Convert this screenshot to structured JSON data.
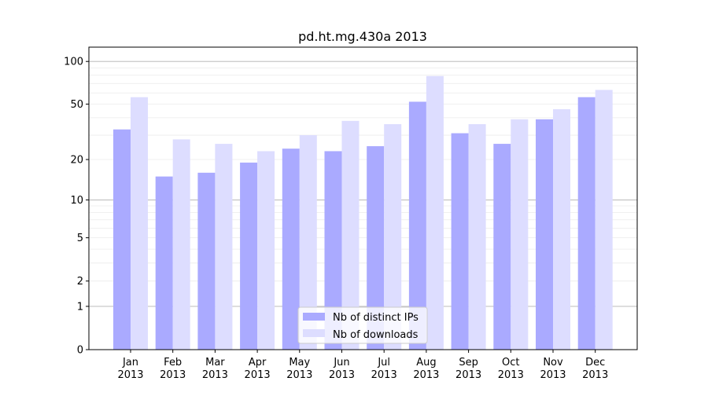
{
  "chart_data": {
    "type": "bar",
    "title": "pd.ht.mg.430a 2013",
    "xlabel": "",
    "ylabel": "",
    "yscale": "symlog",
    "ylim": [
      0,
      115
    ],
    "yticks": [
      0,
      1,
      2,
      5,
      10,
      20,
      50,
      100
    ],
    "ytick_labels": [
      "0",
      "1",
      "2",
      "5",
      "10",
      "20",
      "50",
      "100"
    ],
    "grid": true,
    "legend_position": "lower-center",
    "categories": [
      [
        "Jan",
        "2013"
      ],
      [
        "Feb",
        "2013"
      ],
      [
        "Mar",
        "2013"
      ],
      [
        "Apr",
        "2013"
      ],
      [
        "May",
        "2013"
      ],
      [
        "Jun",
        "2013"
      ],
      [
        "Jul",
        "2013"
      ],
      [
        "Aug",
        "2013"
      ],
      [
        "Sep",
        "2013"
      ],
      [
        "Oct",
        "2013"
      ],
      [
        "Nov",
        "2013"
      ],
      [
        "Dec",
        "2013"
      ]
    ],
    "series": [
      {
        "name": "Nb of distinct IPs",
        "color": "#aaaaff",
        "values": [
          33,
          15,
          16,
          19,
          24,
          23,
          25,
          52,
          31,
          26,
          39,
          56
        ]
      },
      {
        "name": "Nb of downloads",
        "color": "#ddddff",
        "values": [
          56,
          28,
          26,
          23,
          30,
          38,
          36,
          79,
          36,
          39,
          46,
          63
        ]
      }
    ]
  }
}
